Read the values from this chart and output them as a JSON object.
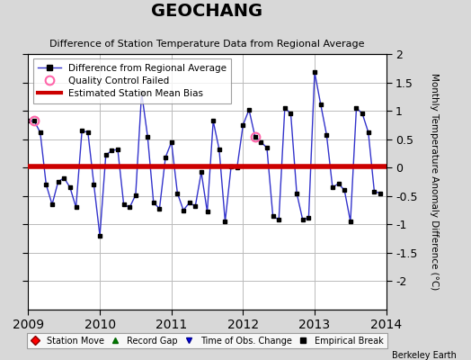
{
  "title": "GEOCHANG",
  "subtitle": "Difference of Station Temperature Data from Regional Average",
  "ylabel_right": "Monthly Temperature Anomaly Difference (°C)",
  "bias": 0.02,
  "ylim": [
    -2.5,
    2.0
  ],
  "yticks": [
    -2.0,
    -1.5,
    -1.0,
    -0.5,
    0.0,
    0.5,
    1.0,
    1.5,
    2.0
  ],
  "x_start": 2009.0,
  "x_end": 2014.0,
  "xticks": [
    2009,
    2010,
    2011,
    2012,
    2013,
    2014
  ],
  "background": "#d8d8d8",
  "plot_background": "#ffffff",
  "line_color": "#3333cc",
  "bias_color": "#cc0000",
  "qc_fail_indices": [
    1,
    38
  ],
  "data": [
    0.82,
    0.82,
    0.62,
    -0.3,
    -0.65,
    -0.25,
    -0.18,
    -0.35,
    -0.7,
    0.65,
    0.62,
    -0.3,
    -1.2,
    0.22,
    0.3,
    0.32,
    -0.65,
    -0.7,
    -0.48,
    1.32,
    0.55,
    -0.62,
    -0.72,
    0.18,
    0.45,
    -0.45,
    -0.75,
    -0.62,
    -0.68,
    -0.08,
    -0.78,
    0.82,
    0.32,
    -0.95,
    0.02,
    0.0,
    0.75,
    1.02,
    0.55,
    0.45,
    0.35,
    -0.85,
    -0.92,
    1.05,
    0.95,
    -0.45,
    -0.92,
    -0.88,
    1.68,
    1.12,
    0.58,
    -0.35,
    -0.28,
    -0.4,
    -0.95,
    1.05,
    0.95,
    0.62,
    -0.42,
    -0.45
  ]
}
